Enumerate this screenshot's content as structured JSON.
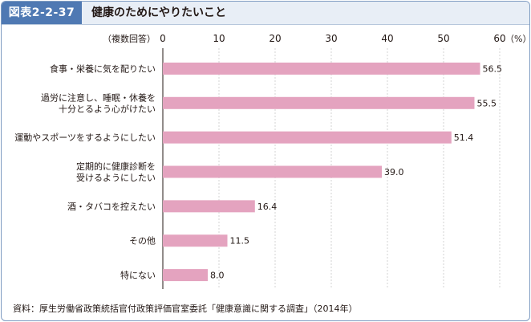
{
  "header": {
    "badge": "図表2-2-37",
    "title": "健康のためにやりたいこと"
  },
  "chart_data": {
    "type": "bar",
    "orientation": "horizontal",
    "unit_label": "（複数回答）",
    "unit_suffix": "（%）",
    "xlim": [
      0,
      60
    ],
    "ticks": [
      0,
      10,
      20,
      30,
      40,
      50,
      60
    ],
    "tick_labels": [
      "0",
      "10",
      "20",
      "30",
      "40",
      "50",
      "60"
    ],
    "categories": [
      [
        "食事・栄養に気を配りたい"
      ],
      [
        "過労に注意し、睡眠・休養を",
        "十分とるよう心がけたい"
      ],
      [
        "運動やスポーツをするようにしたい"
      ],
      [
        "定期的に健康診断を",
        "受けるようにしたい"
      ],
      [
        "酒・タバコを控えたい"
      ],
      [
        "その他"
      ],
      [
        "特にない"
      ]
    ],
    "values": [
      56.5,
      55.5,
      51.4,
      39.0,
      16.4,
      11.5,
      8.0
    ],
    "value_labels": [
      "56.5",
      "55.5",
      "51.4",
      "39.0",
      "16.4",
      "11.5",
      "8.0"
    ],
    "bar_color": "#e4a3bf",
    "grid": true
  },
  "source": "資料：厚生労働省政策統括官付政策評価官室委託「健康意識に関する調査」（2014年）"
}
